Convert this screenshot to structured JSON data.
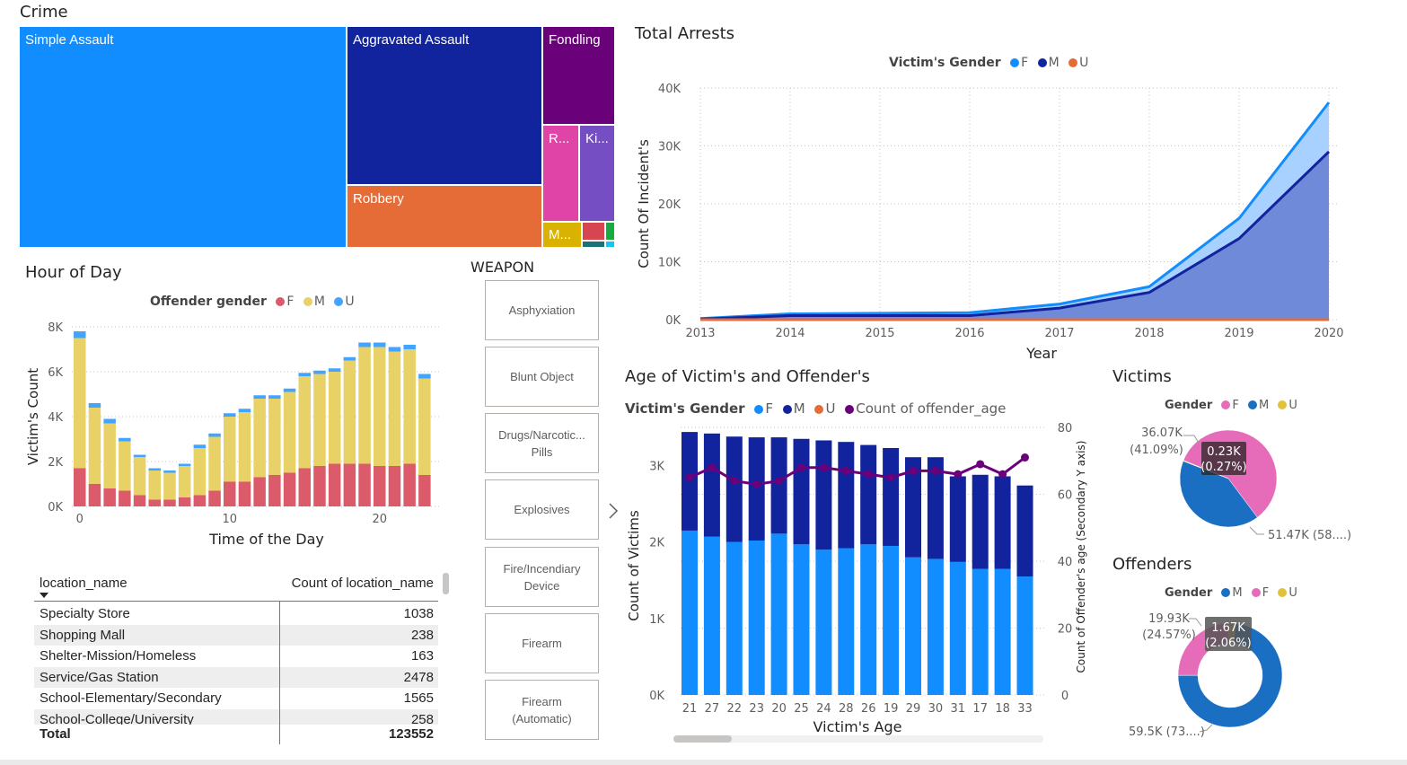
{
  "crime": {
    "title": "Crime",
    "tiles": [
      {
        "label": "Simple Assault",
        "color": "#118dff"
      },
      {
        "label": "Aggravated Assault",
        "color": "#12239e"
      },
      {
        "label": "Fondling",
        "color": "#6b007b"
      },
      {
        "label": "Robbery",
        "color": "#e66c37"
      },
      {
        "label": "R...",
        "color": "#e044a7"
      },
      {
        "label": "Ki...",
        "color": "#744ec2"
      },
      {
        "label": "M...",
        "color": "#d9b300"
      },
      {
        "label": "",
        "color": "#d64550"
      },
      {
        "label": "",
        "color": "#197278"
      },
      {
        "label": "",
        "color": "#1aab40"
      },
      {
        "label": "",
        "color": "#15c6f4"
      }
    ]
  },
  "arrests": {
    "title": "Total Arrests",
    "legend_title": "Victim's Gender",
    "legend": [
      {
        "name": "F",
        "color": "#118dff"
      },
      {
        "name": "M",
        "color": "#12239e"
      },
      {
        "name": "U",
        "color": "#e66c37"
      }
    ],
    "xlabel": "Year",
    "ylabel": "Count Of Incident's",
    "yticks": [
      "0K",
      "10K",
      "20K",
      "30K",
      "40K"
    ],
    "xticks": [
      "2013",
      "2014",
      "2015",
      "2016",
      "2017",
      "2018",
      "2019",
      "2020"
    ]
  },
  "hour": {
    "title": "Hour of Day",
    "legend_title": "Offender gender",
    "legend": [
      {
        "name": "F",
        "color": "#dc5b6b"
      },
      {
        "name": "M",
        "color": "#e8d166"
      },
      {
        "name": "U",
        "color": "#41a4ff"
      }
    ],
    "xlabel": "Time of the Day",
    "ylabel": "Victim's Count",
    "yticks": [
      "0K",
      "2K",
      "4K",
      "6K",
      "8K"
    ],
    "xticks": [
      "0",
      "10",
      "20"
    ]
  },
  "weapon": {
    "title": "WEAPON",
    "items": [
      "Asphyxiation",
      "Blunt Object",
      "Drugs/Narcotic... Pills",
      "Explosives",
      "Fire/Incendiary Device",
      "Firearm",
      "Firearm (Automatic)"
    ]
  },
  "age": {
    "title": "Age of Victim's and Offender's",
    "legend_title": "Victim's Gender",
    "legend": [
      {
        "name": "F",
        "color": "#118dff"
      },
      {
        "name": "M",
        "color": "#12239e"
      },
      {
        "name": "U",
        "color": "#e66c37"
      },
      {
        "name": "Count of offender_age",
        "color": "#6b007b"
      }
    ],
    "xlabel": "Victim's Age",
    "ylabel": "Count of Victims",
    "y2label": "Count of Offender's age (Secondary Y axis)",
    "yticks": [
      "0K",
      "1K",
      "2K",
      "3K"
    ],
    "y2ticks": [
      "0",
      "20",
      "40",
      "60",
      "80"
    ]
  },
  "location_table": {
    "headers": [
      "location_name",
      "Count of location_name"
    ],
    "rows": [
      [
        "Specialty Store",
        "1038"
      ],
      [
        "Shopping Mall",
        "238"
      ],
      [
        "Shelter-Mission/Homeless",
        "163"
      ],
      [
        "Service/Gas Station",
        "2478"
      ],
      [
        "School-Elementary/Secondary",
        "1565"
      ],
      [
        "School-College/University",
        "258"
      ]
    ],
    "total_label": "Total",
    "total_value": "123552"
  },
  "victims": {
    "title": "Victims",
    "legend_title": "Gender",
    "legend": [
      {
        "name": "F",
        "color": "#e66cb9"
      },
      {
        "name": "M",
        "color": "#1a6fc2"
      },
      {
        "name": "U",
        "color": "#e0c33a"
      }
    ],
    "label_m": "36.07K",
    "label_m_pct": "(41.09%)",
    "label_u": "0.23K",
    "label_u_pct": "(0.27%)",
    "label_f": "51.47K (58....)"
  },
  "offenders": {
    "title": "Offenders",
    "legend_title": "Gender",
    "legend": [
      {
        "name": "M",
        "color": "#1a6fc2"
      },
      {
        "name": "F",
        "color": "#e66cb9"
      },
      {
        "name": "U",
        "color": "#e0c33a"
      }
    ],
    "label_f": "19.93K",
    "label_f_pct": "(24.57%)",
    "label_u": "1.67K",
    "label_u_pct": "(2.06%)",
    "label_m": "59.5K (73....)"
  },
  "chart_data": [
    {
      "type": "area",
      "title": "Total Arrests",
      "xlabel": "Year",
      "ylabel": "Count Of Incident's",
      "x": [
        2013,
        2014,
        2015,
        2016,
        2017,
        2018,
        2019,
        2020
      ],
      "ylim": [
        0,
        40000
      ],
      "series": [
        {
          "name": "F",
          "values": [
            200,
            1000,
            1100,
            1200,
            2700,
            5700,
            17500,
            37500
          ]
        },
        {
          "name": "M",
          "values": [
            100,
            700,
            700,
            700,
            2000,
            4700,
            14000,
            29000
          ]
        },
        {
          "name": "U",
          "values": [
            0,
            0,
            0,
            0,
            0,
            0,
            0,
            0
          ]
        }
      ]
    },
    {
      "type": "bar",
      "title": "Hour of Day",
      "xlabel": "Time of the Day",
      "ylabel": "Victim's Count",
      "ylim": [
        0,
        8000
      ],
      "categories": [
        "0",
        "1",
        "2",
        "3",
        "4",
        "5",
        "6",
        "7",
        "8",
        "9",
        "10",
        "11",
        "12",
        "13",
        "14",
        "15",
        "16",
        "17",
        "18",
        "19",
        "20",
        "21",
        "22",
        "23"
      ],
      "series": [
        {
          "name": "F",
          "values": [
            1700,
            1000,
            800,
            700,
            500,
            300,
            300,
            400,
            500,
            700,
            1100,
            1100,
            1300,
            1400,
            1500,
            1700,
            1800,
            1900,
            1900,
            1900,
            1800,
            1800,
            1900,
            1400
          ]
        },
        {
          "name": "M",
          "values": [
            5800,
            3400,
            2900,
            2200,
            1700,
            1300,
            1200,
            1400,
            2100,
            2400,
            2900,
            3100,
            3500,
            3400,
            3600,
            4100,
            4100,
            4100,
            4600,
            5200,
            5300,
            5100,
            5100,
            4300
          ]
        },
        {
          "name": "U",
          "values": [
            300,
            200,
            200,
            150,
            100,
            100,
            100,
            100,
            150,
            150,
            150,
            150,
            150,
            150,
            150,
            150,
            150,
            150,
            150,
            200,
            200,
            200,
            200,
            200
          ]
        }
      ]
    },
    {
      "type": "bar",
      "title": "Age of Victim's and Offender's",
      "xlabel": "Victim's Age",
      "ylabel": "Count of Victims",
      "ylim": [
        0,
        3500
      ],
      "y2lim": [
        0,
        80
      ],
      "categories": [
        "21",
        "27",
        "22",
        "23",
        "20",
        "25",
        "24",
        "28",
        "26",
        "19",
        "29",
        "30",
        "31",
        "17",
        "18",
        "33"
      ],
      "series": [
        {
          "name": "F",
          "values": [
            2150,
            2070,
            2000,
            2020,
            2110,
            1970,
            1900,
            1920,
            1970,
            1950,
            1800,
            1780,
            1740,
            1650,
            1650,
            1550
          ]
        },
        {
          "name": "M",
          "values": [
            1290,
            1350,
            1380,
            1350,
            1260,
            1380,
            1430,
            1390,
            1300,
            1280,
            1310,
            1330,
            1120,
            1230,
            1210,
            1190
          ]
        },
        {
          "name": "U",
          "values": [
            0,
            0,
            0,
            0,
            0,
            0,
            0,
            0,
            0,
            0,
            0,
            0,
            0,
            0,
            0,
            0
          ]
        },
        {
          "name": "Count of offender_age",
          "axis": "secondary",
          "values": [
            65,
            68,
            64,
            63,
            64,
            68,
            68,
            67,
            66,
            65,
            67,
            67,
            66,
            69,
            66,
            71
          ]
        }
      ]
    },
    {
      "type": "pie",
      "title": "Victims",
      "categories": [
        "F",
        "M",
        "U"
      ],
      "values": [
        51470,
        36070,
        230
      ]
    },
    {
      "type": "pie",
      "title": "Offenders",
      "categories": [
        "M",
        "F",
        "U"
      ],
      "values": [
        59500,
        19930,
        1670
      ]
    }
  ]
}
